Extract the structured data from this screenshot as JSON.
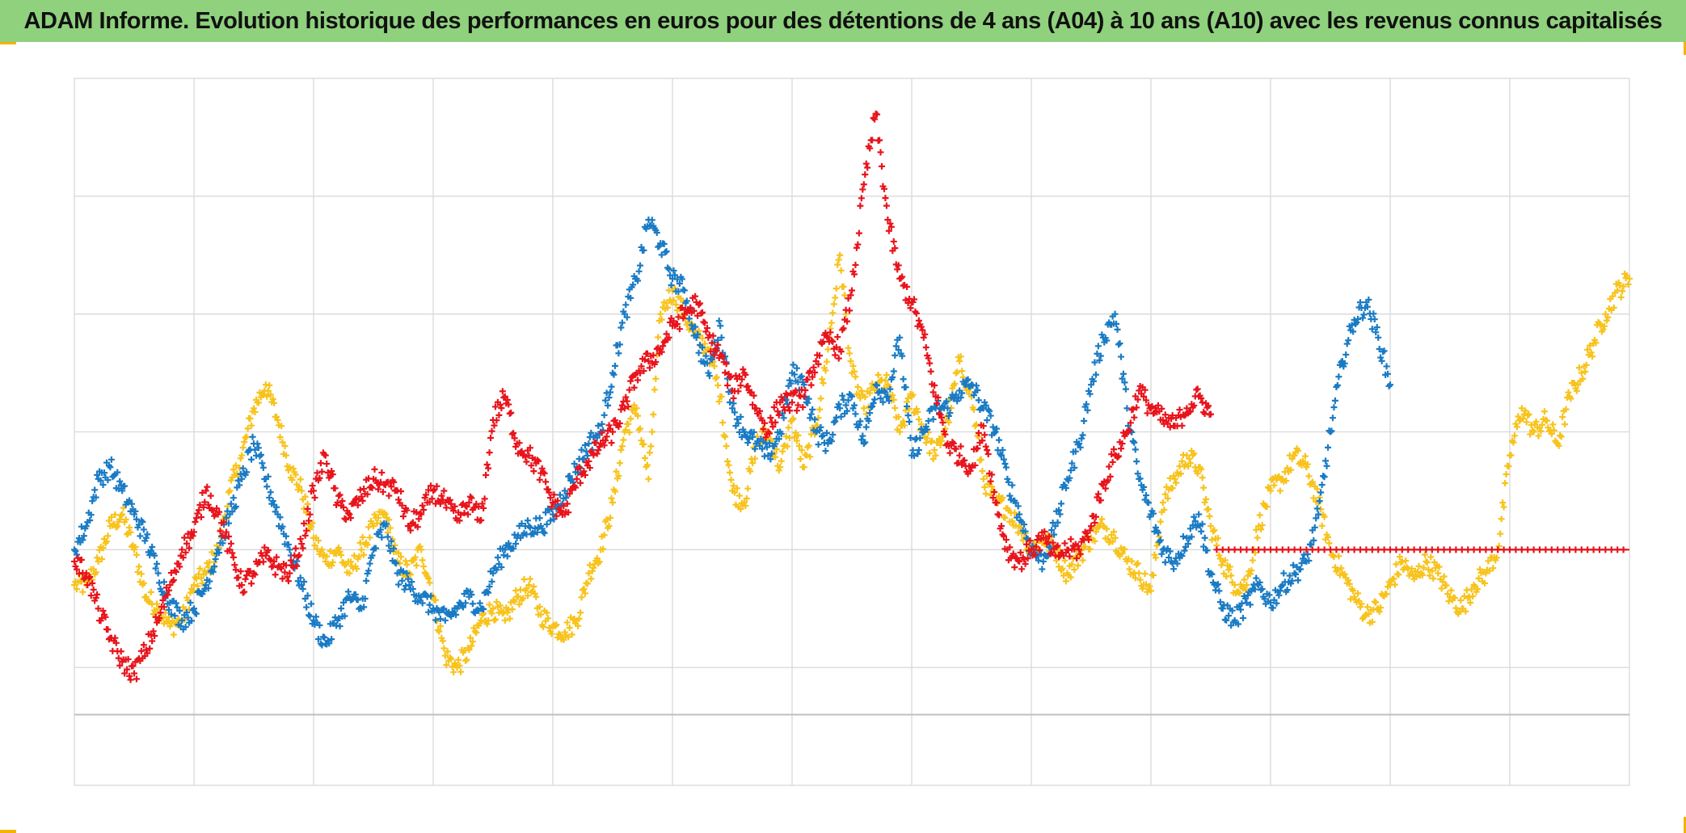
{
  "title": "ADAM Informe. Evolution historique des performances en euros pour des détentions de 4 ans (A04) à 10 ans (A10) avec les revenus connus capitalisés",
  "colors": {
    "title_bg": "#8fd17d",
    "corner_accent": "#f2b400",
    "grid": "#d9d9d9"
  },
  "chart_data": {
    "type": "scatter",
    "title": "ADAM Informe. Evolution historique des performances en euros pour des détentions de 4 ans (A04) à 10 ans (A10) avec les revenus connus capitalisés",
    "xlabel": "",
    "ylabel": "",
    "xlim": [
      0,
      13
    ],
    "ylim": [
      -2,
      4
    ],
    "grid": true,
    "legend": "none",
    "tick_labels_shown": false,
    "marker": "plus",
    "series": [
      {
        "name": "red",
        "color": "#e8141c",
        "x": [
          0.0,
          0.1,
          0.2,
          0.3,
          0.4,
          0.5,
          0.6,
          0.7,
          0.8,
          0.9,
          1.0,
          1.1,
          1.2,
          1.3,
          1.4,
          1.5,
          1.6,
          1.7,
          1.8,
          1.9,
          2.0,
          2.1,
          2.2,
          2.3,
          2.4,
          2.5,
          2.6,
          2.7,
          2.8,
          2.9,
          3.0,
          3.1,
          3.2,
          3.3,
          3.4,
          3.5,
          3.6,
          3.7,
          3.8,
          3.9,
          4.0,
          4.1,
          4.2,
          4.3,
          4.4,
          4.5,
          4.6,
          4.7,
          4.8,
          4.9,
          5.0,
          5.1,
          5.2,
          5.3,
          5.4,
          5.5,
          5.6,
          5.7,
          5.8,
          5.9,
          6.0,
          6.1,
          6.2,
          6.3,
          6.4,
          6.5,
          6.6,
          6.7,
          6.8,
          6.9,
          7.0,
          7.1,
          7.2,
          7.3,
          7.4,
          7.5,
          7.6,
          7.7,
          7.8,
          7.9,
          8.0,
          8.1,
          8.2,
          8.3,
          8.4,
          8.5,
          8.6,
          8.7,
          8.8,
          8.9,
          9.0,
          9.1,
          9.2,
          9.3,
          9.4,
          9.5
        ],
        "y": [
          -0.1,
          -0.2,
          -0.5,
          -0.75,
          -0.95,
          -1.05,
          -0.85,
          -0.6,
          -0.3,
          0.0,
          0.15,
          0.5,
          0.3,
          0.0,
          -0.3,
          -0.2,
          -0.05,
          -0.15,
          -0.2,
          0.05,
          0.5,
          0.8,
          0.4,
          0.3,
          0.45,
          0.6,
          0.55,
          0.5,
          0.2,
          0.3,
          0.5,
          0.4,
          0.25,
          0.4,
          0.25,
          1.1,
          1.3,
          0.9,
          0.8,
          0.65,
          0.4,
          0.3,
          0.6,
          0.75,
          0.9,
          1.0,
          1.2,
          1.5,
          1.6,
          1.7,
          1.9,
          2.0,
          2.1,
          1.8,
          1.65,
          1.35,
          1.5,
          1.2,
          1.0,
          1.25,
          1.25,
          1.3,
          1.6,
          1.8,
          1.7,
          2.2,
          3.1,
          3.7,
          2.8,
          2.3,
          2.1,
          1.8,
          1.3,
          0.9,
          0.8,
          0.7,
          1.05,
          0.4,
          0.0,
          -0.1,
          0.0,
          0.1,
          -0.05,
          0.0,
          0.0,
          0.2,
          0.55,
          0.8,
          1.0,
          1.35,
          1.2,
          1.1,
          1.05,
          1.2,
          1.3,
          1.15
        ]
      },
      {
        "name": "red-flat",
        "color": "#e8141c",
        "x_range": [
          9.55,
          13.0
        ],
        "y": 0.0
      },
      {
        "name": "blue",
        "color": "#1a7bc4",
        "x": [
          0.0,
          0.1,
          0.2,
          0.3,
          0.4,
          0.5,
          0.6,
          0.7,
          0.8,
          0.9,
          1.0,
          1.1,
          1.2,
          1.3,
          1.4,
          1.5,
          1.6,
          1.7,
          1.8,
          1.9,
          2.0,
          2.1,
          2.2,
          2.3,
          2.4,
          2.5,
          2.6,
          2.7,
          2.8,
          2.9,
          3.0,
          3.1,
          3.2,
          3.3,
          3.4,
          3.5,
          3.6,
          3.7,
          3.8,
          3.9,
          4.0,
          4.1,
          4.2,
          4.3,
          4.4,
          4.5,
          4.6,
          4.7,
          4.8,
          4.9,
          5.0,
          5.1,
          5.2,
          5.3,
          5.4,
          5.5,
          5.6,
          5.7,
          5.8,
          5.9,
          6.0,
          6.1,
          6.2,
          6.3,
          6.4,
          6.5,
          6.6,
          6.7,
          6.8,
          6.9,
          7.0,
          7.1,
          7.2,
          7.3,
          7.4,
          7.5,
          7.6,
          7.7,
          7.8,
          7.9,
          8.0,
          8.1,
          8.2,
          8.3,
          8.4,
          8.5,
          8.6,
          8.7,
          8.8,
          8.9,
          9.0,
          9.1,
          9.2,
          9.3,
          9.4,
          9.5,
          9.6,
          9.7,
          9.8,
          9.9,
          10.0,
          10.1,
          10.2,
          10.3,
          10.4,
          10.5,
          10.6,
          10.7,
          10.8,
          10.9,
          11.0
        ],
        "y": [
          0.0,
          0.2,
          0.6,
          0.7,
          0.5,
          0.3,
          0.1,
          -0.2,
          -0.45,
          -0.6,
          -0.5,
          -0.3,
          0.0,
          0.3,
          0.6,
          0.9,
          0.6,
          0.3,
          0.0,
          -0.3,
          -0.6,
          -0.8,
          -0.6,
          -0.4,
          -0.5,
          0.0,
          0.2,
          -0.2,
          -0.3,
          -0.4,
          -0.5,
          -0.6,
          -0.5,
          -0.4,
          -0.5,
          -0.2,
          0.0,
          0.1,
          0.2,
          0.2,
          0.3,
          0.5,
          0.7,
          0.9,
          1.0,
          1.5,
          2.0,
          2.3,
          2.8,
          2.6,
          2.3,
          2.2,
          1.8,
          1.5,
          1.9,
          1.2,
          1.0,
          0.9,
          0.8,
          1.0,
          1.5,
          1.4,
          1.0,
          0.9,
          1.2,
          1.3,
          0.9,
          1.4,
          1.3,
          1.8,
          0.8,
          1.0,
          1.2,
          1.2,
          1.35,
          1.4,
          1.2,
          1.0,
          0.6,
          0.3,
          0.0,
          -0.1,
          0.2,
          0.6,
          0.9,
          1.4,
          1.8,
          2.0,
          1.2,
          0.6,
          0.3,
          0.0,
          -0.1,
          0.1,
          0.3,
          -0.2,
          -0.5,
          -0.6,
          -0.45,
          -0.3,
          -0.45,
          -0.3,
          -0.2,
          -0.1,
          0.3,
          1.0,
          1.6,
          1.95,
          2.1,
          1.8,
          1.4
        ]
      },
      {
        "name": "yellow",
        "color": "#f7c31c",
        "x": [
          0.0,
          0.1,
          0.2,
          0.3,
          0.4,
          0.5,
          0.6,
          0.7,
          0.8,
          0.9,
          1.0,
          1.1,
          1.2,
          1.3,
          1.4,
          1.5,
          1.6,
          1.7,
          1.8,
          1.9,
          2.0,
          2.1,
          2.2,
          2.3,
          2.4,
          2.5,
          2.6,
          2.7,
          2.8,
          2.9,
          3.0,
          3.1,
          3.2,
          3.3,
          3.4,
          3.5,
          3.6,
          3.7,
          3.8,
          3.9,
          4.0,
          4.1,
          4.2,
          4.3,
          4.4,
          4.5,
          4.6,
          4.7,
          4.8,
          4.9,
          5.0,
          5.1,
          5.2,
          5.3,
          5.4,
          5.5,
          5.6,
          5.7,
          5.8,
          5.9,
          6.0,
          6.1,
          6.2,
          6.3,
          6.4,
          6.5,
          6.6,
          6.7,
          6.8,
          6.9,
          7.0,
          7.1,
          7.2,
          7.3,
          7.4,
          7.5,
          7.6,
          7.7,
          7.8,
          7.9,
          8.0,
          8.1,
          8.2,
          8.3,
          8.4,
          8.5,
          8.6,
          8.7,
          8.8,
          8.9,
          9.0,
          9.1,
          9.2,
          9.3,
          9.4,
          9.5,
          9.6,
          9.7,
          9.8,
          9.9,
          10.0,
          10.1,
          10.2,
          10.3,
          10.4,
          10.5,
          10.6,
          10.7,
          10.8,
          10.9,
          11.0,
          11.1,
          11.2,
          11.3,
          11.4,
          11.5,
          11.6,
          11.7,
          11.8,
          11.9,
          12.0,
          12.1,
          12.2,
          12.3,
          12.4,
          12.5,
          12.6,
          12.7,
          12.8,
          12.9,
          13.0
        ],
        "y": [
          -0.3,
          -0.3,
          -0.1,
          0.2,
          0.3,
          0.0,
          -0.4,
          -0.5,
          -0.65,
          -0.6,
          -0.3,
          -0.2,
          0.0,
          0.5,
          0.8,
          1.2,
          1.4,
          1.1,
          0.7,
          0.5,
          0.1,
          -0.1,
          0.0,
          -0.2,
          0.0,
          0.2,
          0.3,
          -0.1,
          -0.2,
          0.0,
          -0.4,
          -0.9,
          -1.0,
          -0.85,
          -0.6,
          -0.5,
          -0.6,
          -0.4,
          -0.3,
          -0.55,
          -0.65,
          -0.7,
          -0.6,
          -0.2,
          0.0,
          0.4,
          1.0,
          1.2,
          0.6,
          2.0,
          2.2,
          2.0,
          1.8,
          1.7,
          1.3,
          0.5,
          0.4,
          0.9,
          1.0,
          0.7,
          1.1,
          0.7,
          1.05,
          1.7,
          2.5,
          1.5,
          1.2,
          1.4,
          1.4,
          1.0,
          1.3,
          1.0,
          0.8,
          1.1,
          1.6,
          1.3,
          0.6,
          0.4,
          0.35,
          0.2,
          0.0,
          0.1,
          0.0,
          -0.2,
          -0.05,
          0.1,
          0.2,
          0.1,
          -0.1,
          -0.2,
          -0.35,
          0.4,
          0.6,
          0.8,
          0.7,
          0.2,
          -0.1,
          -0.3,
          -0.3,
          0.2,
          0.5,
          0.6,
          0.8,
          0.7,
          0.4,
          0.0,
          -0.2,
          -0.4,
          -0.55,
          -0.5,
          -0.3,
          -0.1,
          -0.25,
          -0.1,
          -0.2,
          -0.4,
          -0.5,
          -0.3,
          -0.2,
          0.0,
          0.8,
          1.2,
          1.0,
          1.1,
          0.9,
          1.3,
          1.5,
          1.75,
          2.0,
          2.2,
          2.3
        ]
      }
    ]
  }
}
